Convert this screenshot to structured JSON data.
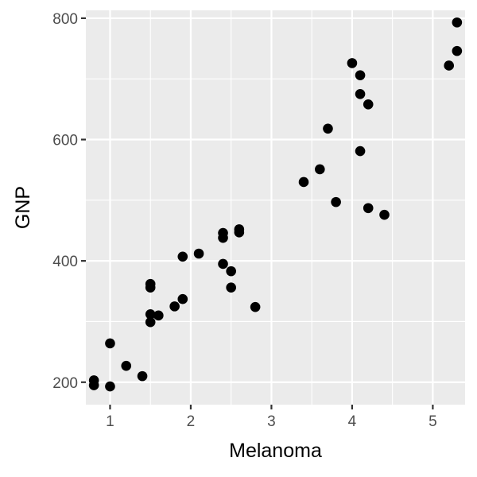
{
  "chart_data": {
    "type": "scatter",
    "xlabel": "Melanoma",
    "ylabel": "GNP",
    "xlim": [
      0.7,
      5.4
    ],
    "ylim": [
      163,
      813
    ],
    "x_ticks": [
      1,
      2,
      3,
      4,
      5
    ],
    "x_tick_labels": [
      "1",
      "2",
      "3",
      "4",
      "5"
    ],
    "y_ticks": [
      200,
      400,
      600,
      800
    ],
    "y_tick_labels": [
      "200",
      "400",
      "600",
      "800"
    ],
    "grid": true,
    "panel_background": "#ebebeb",
    "grid_color": "#ffffff",
    "point_color": "#000000",
    "points": [
      {
        "x": 0.8,
        "y": 203
      },
      {
        "x": 0.8,
        "y": 195
      },
      {
        "x": 1.0,
        "y": 193
      },
      {
        "x": 1.0,
        "y": 264
      },
      {
        "x": 1.2,
        "y": 227
      },
      {
        "x": 1.4,
        "y": 210
      },
      {
        "x": 1.5,
        "y": 362
      },
      {
        "x": 1.5,
        "y": 356
      },
      {
        "x": 1.5,
        "y": 312
      },
      {
        "x": 1.5,
        "y": 299
      },
      {
        "x": 1.6,
        "y": 310
      },
      {
        "x": 1.8,
        "y": 325
      },
      {
        "x": 1.9,
        "y": 337
      },
      {
        "x": 1.9,
        "y": 407
      },
      {
        "x": 2.1,
        "y": 412
      },
      {
        "x": 2.4,
        "y": 446
      },
      {
        "x": 2.4,
        "y": 438
      },
      {
        "x": 2.4,
        "y": 395
      },
      {
        "x": 2.5,
        "y": 383
      },
      {
        "x": 2.5,
        "y": 356
      },
      {
        "x": 2.6,
        "y": 452
      },
      {
        "x": 2.6,
        "y": 447
      },
      {
        "x": 2.8,
        "y": 324
      },
      {
        "x": 3.4,
        "y": 530
      },
      {
        "x": 3.6,
        "y": 551
      },
      {
        "x": 3.7,
        "y": 618
      },
      {
        "x": 3.8,
        "y": 497
      },
      {
        "x": 4.0,
        "y": 726
      },
      {
        "x": 4.1,
        "y": 706
      },
      {
        "x": 4.1,
        "y": 675
      },
      {
        "x": 4.1,
        "y": 581
      },
      {
        "x": 4.2,
        "y": 658
      },
      {
        "x": 4.2,
        "y": 487
      },
      {
        "x": 4.4,
        "y": 476
      },
      {
        "x": 5.2,
        "y": 722
      },
      {
        "x": 5.3,
        "y": 746
      },
      {
        "x": 5.3,
        "y": 793
      }
    ]
  }
}
